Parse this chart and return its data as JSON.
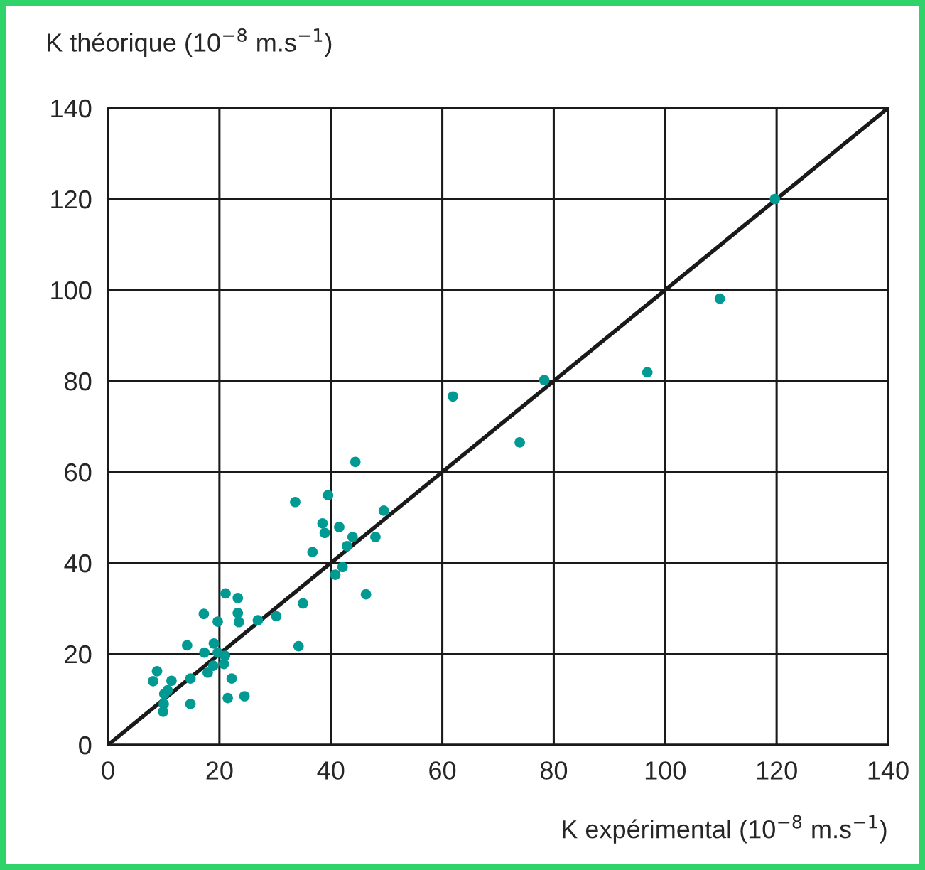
{
  "chart_data": {
    "type": "scatter",
    "xlabel": "K expérimental (10$^{−8}$ m.s$^{−1}$)",
    "ylabel": "K théorique (10$^{−8}$ m.s$^{−1}$)",
    "xlim": [
      0,
      140
    ],
    "ylim": [
      0,
      140
    ],
    "xticks": [
      0,
      20,
      40,
      60,
      80,
      100,
      120,
      140
    ],
    "yticks": [
      0,
      20,
      40,
      60,
      80,
      100,
      120,
      140
    ],
    "grid": true,
    "marker": "circle",
    "series": [
      {
        "color": "#009a93",
        "x": [
          33.6,
          39.5,
          49.5,
          38.5,
          38.9,
          41.5,
          43.9,
          42.9,
          48.0,
          36.7,
          42.1,
          40.8,
          46.3,
          35.0,
          30.2,
          26.9,
          21.1,
          23.3,
          23.3,
          23.5,
          17.2,
          19.7,
          14.2,
          19.0,
          17.3,
          19.7,
          21.0,
          20.8,
          18.9,
          17.9,
          22.2,
          34.2,
          8.8,
          8.1,
          11.4,
          14.8,
          10.7,
          10.1,
          10.0,
          9.9,
          14.8,
          21.5,
          24.5,
          44.4,
          61.9,
          73.9,
          78.3,
          96.8,
          109.8,
          119.7
        ],
        "values": [
          53.4,
          54.9,
          51.5,
          48.7,
          46.6,
          47.9,
          45.7,
          43.7,
          45.7,
          42.4,
          39.1,
          37.4,
          33.1,
          31.1,
          28.3,
          27.4,
          33.3,
          32.3,
          29.0,
          27.0,
          28.8,
          27.1,
          21.9,
          22.3,
          20.3,
          20.3,
          19.6,
          17.8,
          17.4,
          15.9,
          14.6,
          21.7,
          16.2,
          14.0,
          14.1,
          14.6,
          12.0,
          11.2,
          9.0,
          7.3,
          9.0,
          10.3,
          10.7,
          62.2,
          76.6,
          66.5,
          80.2,
          81.9,
          98.1,
          120.0
        ]
      },
      {
        "type": "line",
        "color": "#1a1a1a",
        "line_style": "solid",
        "marker": "none",
        "x": [
          0,
          140
        ],
        "values": [
          0,
          140
        ]
      }
    ]
  }
}
